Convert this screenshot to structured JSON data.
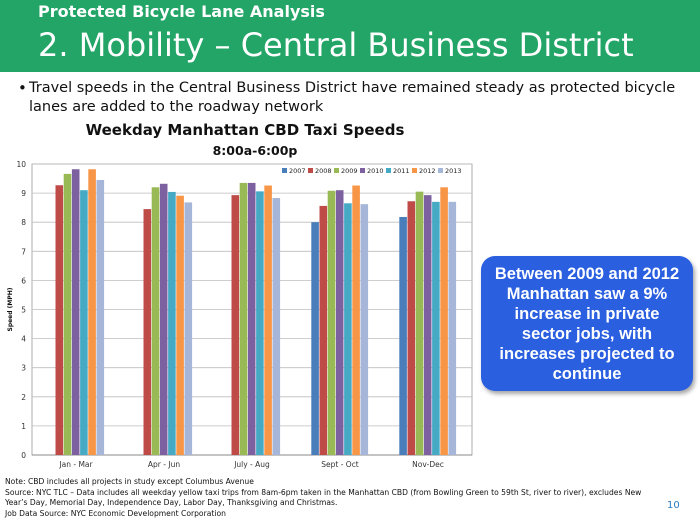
{
  "header": {
    "subtitle": "Protected Bicycle Lane Analysis",
    "title": "2. Mobility – Central Business District",
    "background": "#22a566"
  },
  "bullet": {
    "text": "Travel speeds in the Central Business District have remained steady as protected bicycle lanes are added to the roadway network"
  },
  "callout": {
    "text": "Between 2009 and 2012 Manhattan saw a 9% increase in private sector jobs, with increases projected to continue",
    "background": "#2a5fe0"
  },
  "footnotes": [
    "Note: CBD includes all projects in study except Columbus Avenue",
    "Source: NYC TLC – Data includes all weekday yellow taxi trips from 8am-6pm taken in the Manhattan CBD (from Bowling Green to 59th St, river to river), excludes New Year’s Day, Memorial Day, Independence Day, Labor Day, Thanksgiving and Christmas.",
    "Job Data Source: NYC Economic Development Corporation"
  ],
  "page_number": "10",
  "chart_data": {
    "type": "bar",
    "title": "Weekday Manhattan CBD Taxi Speeds",
    "subtitle": "8:00a-6:00p",
    "xlabel": "",
    "ylabel": "Speed (MPH)",
    "ylim": [
      0,
      10
    ],
    "yticks": [
      0,
      1,
      2,
      3,
      4,
      5,
      6,
      7,
      8,
      9,
      10
    ],
    "grid": true,
    "legend_position": "top-right",
    "categories": [
      "Jan - Mar",
      "Apr - Jun",
      "July - Aug",
      "Sept - Oct",
      "Nov-Dec"
    ],
    "series": [
      {
        "name": "2007",
        "color": "#4a7ebb",
        "values": [
          null,
          null,
          null,
          8.0,
          8.18
        ]
      },
      {
        "name": "2008",
        "color": "#be4b48",
        "values": [
          9.27,
          8.45,
          8.93,
          8.56,
          8.72
        ]
      },
      {
        "name": "2009",
        "color": "#98b954",
        "values": [
          9.66,
          9.2,
          9.35,
          9.08,
          9.05
        ]
      },
      {
        "name": "2010",
        "color": "#7d60a0",
        "values": [
          9.82,
          9.32,
          9.35,
          9.1,
          8.93
        ]
      },
      {
        "name": "2011",
        "color": "#46aac5",
        "values": [
          9.1,
          9.04,
          9.06,
          8.65,
          8.7
        ]
      },
      {
        "name": "2012",
        "color": "#f79646",
        "values": [
          9.82,
          8.91,
          9.26,
          9.26,
          9.2
        ]
      },
      {
        "name": "2013",
        "color": "#a5b6d8",
        "values": [
          9.45,
          8.68,
          8.83,
          8.62,
          8.7
        ]
      }
    ]
  }
}
